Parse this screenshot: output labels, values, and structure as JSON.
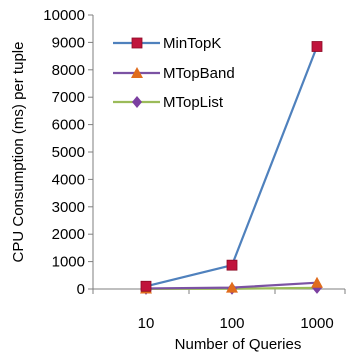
{
  "chart_data": {
    "type": "line",
    "xlabel": "Number of Queries",
    "ylabel": "CPU Consumption (ms) per tuple",
    "categories": [
      "10",
      "100",
      "1000"
    ],
    "ylim": [
      0,
      10000
    ],
    "yticks": [
      "0",
      "1000",
      "2000",
      "3000",
      "4000",
      "5000",
      "6000",
      "7000",
      "8000",
      "9000",
      "10000"
    ],
    "grid": false,
    "legend_position": "top-left",
    "series": [
      {
        "name": "MinTopK",
        "values": [
          100,
          870,
          8850
        ],
        "color": "#4f81bd",
        "marker": "square",
        "marker_color": "#c0143c"
      },
      {
        "name": "MTopBand",
        "values": [
          20,
          50,
          230
        ],
        "color": "#7b52a3",
        "marker": "triangle",
        "marker_color": "#e06c1c"
      },
      {
        "name": "MTopList",
        "values": [
          5,
          10,
          40
        ],
        "color": "#9bbb59",
        "marker": "diamond",
        "marker_color": "#7b3fa0"
      }
    ]
  }
}
